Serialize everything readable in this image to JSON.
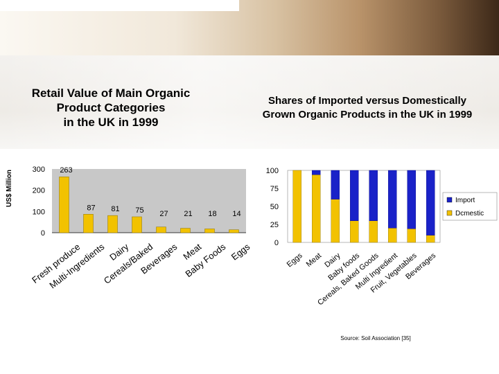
{
  "charts_titles": {
    "left": [
      "Retail Value of Main Organic",
      "Product Categories",
      "in the UK in 1999"
    ],
    "right": [
      "Shares of Imported versus Domestically",
      "Grown Organic Products in the UK in 1999"
    ]
  },
  "source_note": "Source: Soil Association [35]",
  "colors": {
    "bar": "#f2c200",
    "import": "#1a22c8",
    "domestic": "#f2c200",
    "plot_bg": "#c8c8c8"
  },
  "chart_data": [
    {
      "type": "bar",
      "title": "Retail Value of Main Organic Product Categories in the UK in 1999",
      "ylabel": "US$ Million",
      "ylim": [
        0,
        300
      ],
      "yticks": [
        0,
        100,
        200,
        300
      ],
      "categories": [
        "Fresh produce",
        "Multi-Ingredients",
        "Dairy",
        "Cereals/Baked",
        "Beverages",
        "Meat",
        "Baby Foods",
        "Eggs"
      ],
      "values": [
        263,
        87,
        81,
        75,
        27,
        21,
        18,
        14
      ],
      "data_labels": [
        "263",
        "87",
        "81",
        "75",
        "27",
        "21",
        "18",
        "14"
      ]
    },
    {
      "type": "bar",
      "stacked": true,
      "title": "Shares of Imported versus Domestically Grown Organic Products in the UK in 1999",
      "ylim": [
        0,
        100
      ],
      "yticks": [
        0,
        25,
        50,
        75,
        100
      ],
      "categories": [
        "Eggs",
        "Meat",
        "Dairy",
        "Baby foods",
        "Cereals, Baked Goods",
        "Multi Ingredient",
        "Fruit, Vegetables",
        "Beverages"
      ],
      "series": [
        {
          "name": "Domestic",
          "legend_label": "Dcmestic",
          "values": [
            100,
            94,
            60,
            30,
            30,
            20,
            19,
            10
          ]
        },
        {
          "name": "Import",
          "legend_label": "Import",
          "values": [
            0,
            6,
            40,
            70,
            70,
            80,
            81,
            90
          ]
        }
      ],
      "legend": "right"
    }
  ]
}
